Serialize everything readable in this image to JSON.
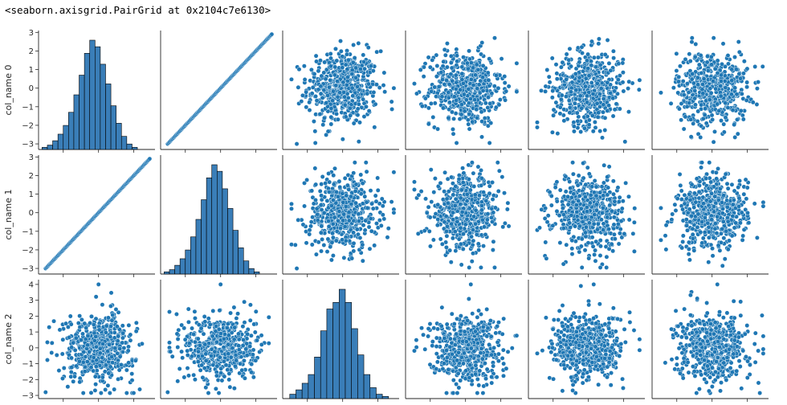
{
  "output": {
    "repr_text": "<seaborn.axisgrid.PairGrid at 0x2104c7e6130>"
  },
  "chart_data": {
    "type": "pairgrid",
    "title": "",
    "rows": [
      "col_name 0",
      "col_name 1",
      "col_name 2"
    ],
    "n_columns": 6,
    "colors": {
      "marker": "#1f77b4",
      "hist_fill": "#3a7eb8",
      "hist_edge": "#000000",
      "axis": "#262626"
    },
    "rows_axes": [
      {
        "ylabel": "col_name 0",
        "ylim": [
          -3.3,
          3.1
        ],
        "yticks": [
          3,
          2,
          1,
          0,
          -1,
          -2,
          -3
        ],
        "ytick_labels": [
          "3",
          "2",
          "1",
          "0",
          "−1",
          "−2",
          "−3"
        ]
      },
      {
        "ylabel": "col_name 1",
        "ylim": [
          -3.3,
          3.1
        ],
        "yticks": [
          3,
          2,
          1,
          0,
          -1,
          -2,
          -3
        ],
        "ytick_labels": [
          "3",
          "2",
          "1",
          "0",
          "−1",
          "−2",
          "−3"
        ]
      },
      {
        "ylabel": "col_name 2",
        "ylim": [
          -3.2,
          4.3
        ],
        "yticks": [
          4,
          3,
          2,
          1,
          0,
          -1,
          -2,
          -3
        ],
        "ytick_labels": [
          "4",
          "3",
          "2",
          "1",
          "0",
          "−1",
          "−2",
          "−3"
        ]
      }
    ],
    "diagonal_histograms": [
      {
        "row": 0,
        "col": 0,
        "bin_start": -3.2,
        "bin_width": 0.3,
        "counts": [
          2,
          4,
          8,
          14,
          22,
          34,
          50,
          68,
          88,
          100,
          94,
          78,
          60,
          40,
          24,
          12,
          5,
          2
        ]
      },
      {
        "row": 1,
        "col": 1,
        "bin_start": -3.2,
        "bin_width": 0.3,
        "counts": [
          2,
          4,
          8,
          14,
          22,
          34,
          50,
          68,
          88,
          100,
          94,
          78,
          60,
          40,
          24,
          12,
          5,
          2
        ]
      },
      {
        "row": 2,
        "col": 2,
        "bin_start": -3.0,
        "bin_width": 0.35,
        "counts": [
          4,
          8,
          14,
          22,
          38,
          62,
          82,
          88,
          100,
          88,
          64,
          40,
          22,
          10,
          4,
          2
        ]
      }
    ],
    "identity_panels": [
      {
        "row": 0,
        "col": 1,
        "x_range": [
          -3.0,
          2.9
        ]
      },
      {
        "row": 1,
        "col": 0,
        "x_range": [
          -3.0,
          2.9
        ]
      }
    ],
    "scatter": {
      "points_per_panel": 520,
      "distribution": "standard normal, uncorrelated",
      "std_by_row": [
        1.0,
        1.0,
        1.05
      ],
      "outliers": [
        {
          "row": 0,
          "col": 2,
          "x": -2.6,
          "y": -3.0
        },
        {
          "row": 0,
          "col": 2,
          "x": 2.9,
          "y": 0.0
        },
        {
          "row": 1,
          "col": 2,
          "x": -2.6,
          "y": -3.0
        },
        {
          "row": 1,
          "col": 2,
          "x": 2.9,
          "y": 0.0
        },
        {
          "row": 2,
          "col": 0,
          "x": -3.0,
          "y": -2.8
        },
        {
          "row": 2,
          "col": 0,
          "x": -2.8,
          "y": 1.3
        },
        {
          "row": 2,
          "col": 0,
          "x": 0.0,
          "y": 4.0
        },
        {
          "row": 2,
          "col": 1,
          "x": -3.0,
          "y": -2.8
        },
        {
          "row": 2,
          "col": 1,
          "x": 0.0,
          "y": 4.0
        },
        {
          "row": 2,
          "col": 3,
          "x": 0.3,
          "y": 4.0
        },
        {
          "row": 2,
          "col": 4,
          "x": 0.3,
          "y": 4.0
        },
        {
          "row": 2,
          "col": 5,
          "x": 0.3,
          "y": 4.0
        }
      ]
    },
    "grid": false,
    "legend": "none"
  }
}
